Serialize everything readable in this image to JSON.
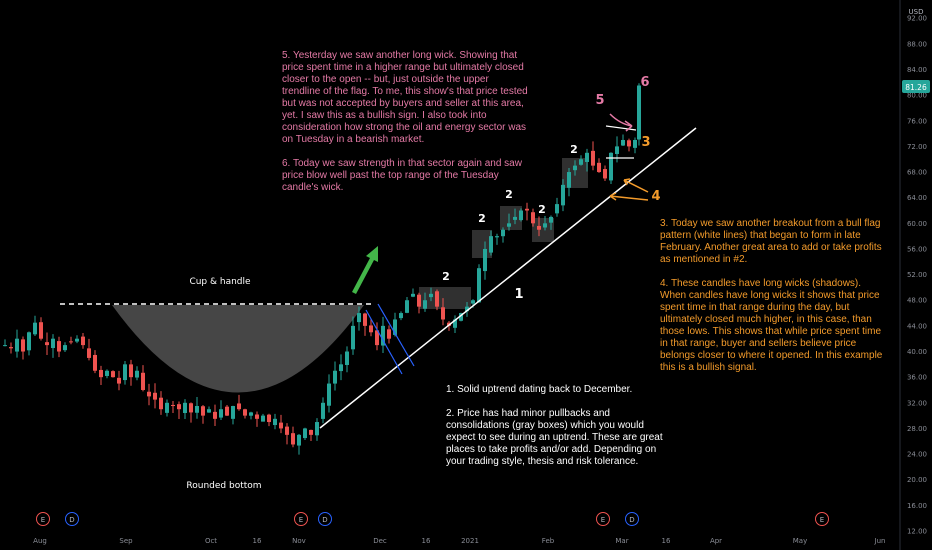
{
  "chart_data": {
    "type": "candlestick",
    "currency": "USD",
    "last_price": "81.26",
    "ylim": [
      12,
      94
    ],
    "y_ticks": [
      "92.00",
      "88.00",
      "84.00",
      "80.00",
      "76.00",
      "72.00",
      "68.00",
      "64.00",
      "60.00",
      "56.00",
      "52.00",
      "48.00",
      "44.00",
      "40.00",
      "36.00",
      "32.00",
      "28.00",
      "24.00",
      "20.00",
      "16.00",
      "12.00"
    ],
    "y_tick_values": [
      92,
      88,
      84,
      80,
      76,
      72,
      68,
      64,
      60,
      56,
      52,
      48,
      44,
      40,
      36,
      32,
      28,
      24,
      20,
      16,
      12
    ],
    "x_ticks": [
      "Aug",
      "Sep",
      "Oct",
      "16",
      "Nov",
      "Dec",
      "16",
      "2021",
      "Feb",
      "Mar",
      "16",
      "Apr",
      "May",
      "Jun"
    ],
    "price_anchors": [
      [
        0,
        41
      ],
      [
        6,
        40.5
      ],
      [
        12,
        42
      ],
      [
        18,
        40
      ],
      [
        24,
        43
      ],
      [
        30,
        44.5
      ],
      [
        36,
        42
      ],
      [
        42,
        41
      ],
      [
        48,
        42
      ],
      [
        54,
        40
      ],
      [
        60,
        41
      ],
      [
        66,
        41.5
      ],
      [
        72,
        42
      ],
      [
        78,
        41
      ],
      [
        84,
        39
      ],
      [
        90,
        37
      ],
      [
        96,
        36
      ],
      [
        102,
        37
      ],
      [
        108,
        36
      ],
      [
        114,
        35
      ],
      [
        120,
        38
      ],
      [
        126,
        36
      ],
      [
        132,
        37
      ],
      [
        138,
        34
      ],
      [
        144,
        33
      ],
      [
        150,
        32.5
      ],
      [
        156,
        31
      ],
      [
        162,
        32
      ],
      [
        168,
        31.5
      ],
      [
        174,
        31
      ],
      [
        180,
        32
      ],
      [
        186,
        30.5
      ],
      [
        192,
        31.5
      ],
      [
        198,
        30
      ],
      [
        204,
        31
      ],
      [
        210,
        29.5
      ],
      [
        216,
        31
      ],
      [
        222,
        30
      ],
      [
        228,
        31.5
      ],
      [
        234,
        31
      ],
      [
        240,
        30
      ],
      [
        246,
        30.5
      ],
      [
        252,
        29.5
      ],
      [
        258,
        30
      ],
      [
        264,
        29
      ],
      [
        270,
        29.5
      ],
      [
        276,
        28
      ],
      [
        282,
        27
      ],
      [
        288,
        25.5
      ],
      [
        294,
        27
      ],
      [
        300,
        28
      ],
      [
        306,
        27
      ],
      [
        312,
        29
      ],
      [
        318,
        32
      ],
      [
        324,
        35
      ],
      [
        330,
        37
      ],
      [
        336,
        38
      ],
      [
        342,
        40
      ],
      [
        348,
        44
      ],
      [
        354,
        46
      ],
      [
        360,
        44
      ],
      [
        366,
        43
      ],
      [
        372,
        41
      ],
      [
        378,
        44
      ],
      [
        384,
        42
      ],
      [
        390,
        45
      ],
      [
        396,
        46
      ],
      [
        402,
        48
      ],
      [
        408,
        49
      ],
      [
        414,
        47
      ],
      [
        420,
        48
      ],
      [
        426,
        49
      ],
      [
        432,
        47
      ],
      [
        438,
        45
      ],
      [
        444,
        44
      ],
      [
        450,
        45
      ],
      [
        456,
        46
      ],
      [
        462,
        47
      ],
      [
        468,
        48
      ],
      [
        474,
        53
      ],
      [
        480,
        56
      ],
      [
        486,
        58
      ],
      [
        492,
        58
      ],
      [
        498,
        59
      ],
      [
        504,
        60
      ],
      [
        510,
        61
      ],
      [
        516,
        62
      ],
      [
        522,
        62
      ],
      [
        528,
        60
      ],
      [
        534,
        59
      ],
      [
        540,
        60
      ],
      [
        546,
        61
      ],
      [
        552,
        63
      ],
      [
        558,
        66
      ],
      [
        564,
        68
      ],
      [
        570,
        69
      ],
      [
        576,
        70
      ],
      [
        582,
        71
      ],
      [
        588,
        69
      ],
      [
        594,
        68
      ],
      [
        600,
        67
      ],
      [
        606,
        71
      ],
      [
        612,
        72
      ],
      [
        618,
        73
      ],
      [
        624,
        72
      ],
      [
        630,
        73
      ],
      [
        634,
        81.5
      ]
    ],
    "annotations": {
      "cup_label": "Cup & handle",
      "rounded_label": "Rounded bottom",
      "trend_label": "1",
      "box_labels": [
        "2",
        "2",
        "2",
        "2",
        "2"
      ],
      "flag_label": "3",
      "wick_label": "4",
      "long_wick_label": "5",
      "breakout_label": "6"
    },
    "notes": {
      "pink_5": "5. Yesterday we saw another long wick. Showing that price spent time in a higher range but ultimately closed closer to the open -- but, just outside the upper trendline of the flag. To me, this show's that price tested but was not accepted by buyers and seller at this area, yet. I saw this as a bullish sign. I also took into consideration how strong the oil and energy sector was on Tuesday in a bearish market.",
      "pink_6": "6. Today we saw strength in that sector again and saw price blow well past the top range of the Tuesday candle's wick.",
      "orange_3": "3. Today we saw another breakout from a bull flag pattern (white lines) that began to form in late February. Another great area to add or take profits as mentioned in #2.",
      "orange_4": "4. These candles have long wicks (shadows). When candles have long wicks it shows that price spent time in that range during the day, but ultimately closed much higher, in this case,  than those lows. This shows that while price spent time in that range, buyer and sellers believe price belongs closer to where it opened. In this example this is a bullish signal.",
      "white_1": "1. Solid uptrend dating back to December.",
      "white_2": "2. Price has had minor pullbacks and consolidations (gray boxes) which you would expect to see during an uptrend. These are great places to take profits and/or add. Depending on your trading style, thesis and risk tolerance."
    },
    "events": [
      "E",
      "D",
      "E",
      "D",
      "E",
      "D",
      "E"
    ],
    "colors": {
      "up": "#26a69a",
      "down": "#ef5350",
      "last_price_bg": "#26a69a",
      "pink": "#e57aa6",
      "orange": "#f39b2b"
    }
  }
}
